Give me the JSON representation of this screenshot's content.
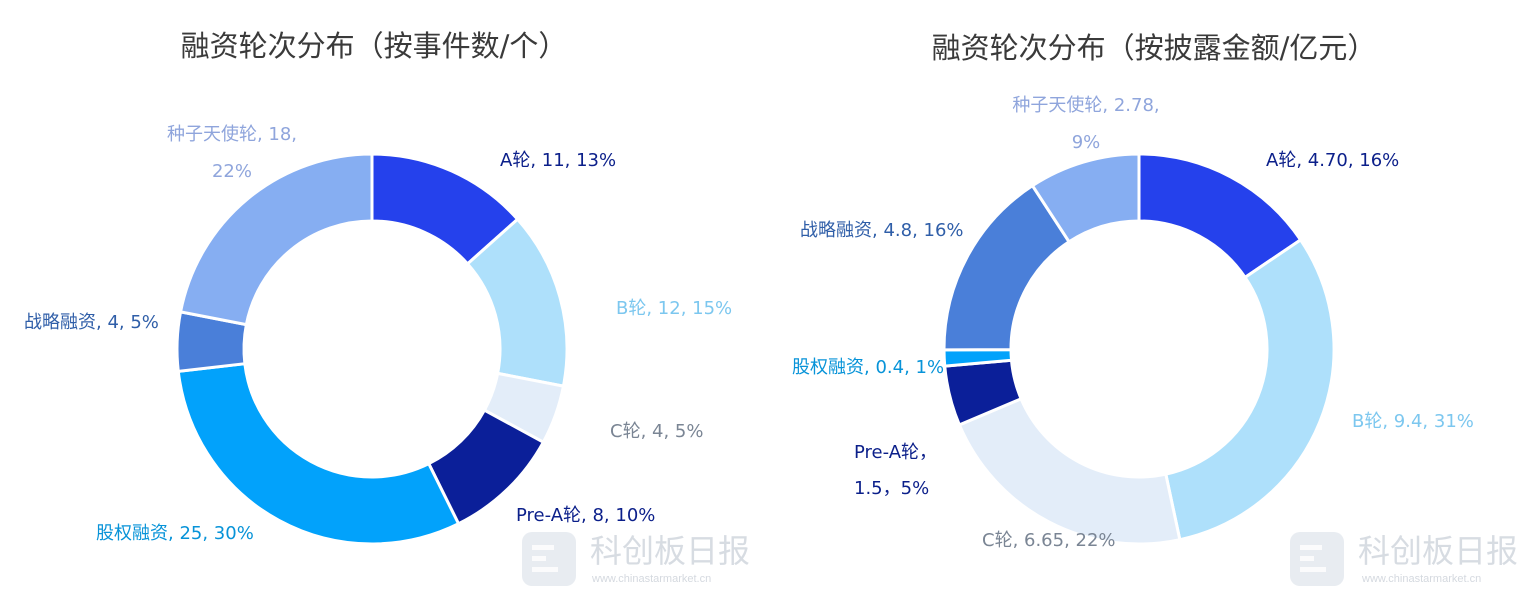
{
  "chart_data": [
    {
      "type": "pie",
      "title": "融资轮次分布（按事件数/个）",
      "slices": [
        {
          "name": "A轮",
          "value": 11,
          "label": "A轮, 11, 13%",
          "color": "#2541ec",
          "label_color": "#0b1f8a"
        },
        {
          "name": "B轮",
          "value": 12,
          "label": "B轮, 12, 15%",
          "color": "#aee0fb",
          "label_color": "#7cc7ef"
        },
        {
          "name": "C轮",
          "value": 4,
          "label": "C轮, 4, 5%",
          "color": "#e3edf9",
          "label_color": "#7a8594"
        },
        {
          "name": "Pre-A轮",
          "value": 8,
          "label": "Pre-A轮, 8, 10%",
          "color": "#0b1f99",
          "label_color": "#0b1f8a"
        },
        {
          "name": "股权融资",
          "value": 25,
          "label": "股权融资, 25, 30%",
          "color": "#02a2fb",
          "label_color": "#0793d8"
        },
        {
          "name": "战略融资",
          "value": 4,
          "label": "战略融资, 4, 5%",
          "color": "#4a7fd9",
          "label_color": "#2f5ea8"
        },
        {
          "name": "种子天使轮",
          "value": 18,
          "label_lines": [
            "种子天使轮, 18,",
            "22%"
          ],
          "color": "#86aef2",
          "label_color": "#8fa5dc"
        }
      ]
    },
    {
      "type": "pie",
      "title": "融资轮次分布（按披露金额/亿元）",
      "slices": [
        {
          "name": "A轮",
          "value": 4.7,
          "label": "A轮, 4.70, 16%",
          "color": "#2541ec",
          "label_color": "#0b1f8a"
        },
        {
          "name": "B轮",
          "value": 9.4,
          "label": "B轮, 9.4, 31%",
          "color": "#aee0fb",
          "label_color": "#7cc7ef"
        },
        {
          "name": "C轮",
          "value": 6.65,
          "label": "C轮, 6.65, 22%",
          "color": "#e3edf9",
          "label_color": "#7a8594"
        },
        {
          "name": "Pre-A轮",
          "value": 1.5,
          "label_lines": [
            "Pre-A轮，",
            "1.5，5%"
          ],
          "color": "#0b1f99",
          "label_color": "#0b1f8a"
        },
        {
          "name": "股权融资",
          "value": 0.4,
          "label": "股权融资, 0.4, 1%",
          "color": "#02a2fb",
          "label_color": "#0793d8"
        },
        {
          "name": "战略融资",
          "value": 4.8,
          "label": "战略融资, 4.8, 16%",
          "color": "#4a7fd9",
          "label_color": "#2f5ea8"
        },
        {
          "name": "种子天使轮",
          "value": 2.78,
          "label_lines": [
            "种子天使轮, 2.78,",
            "9%"
          ],
          "color": "#86aef2",
          "label_color": "#8fa5dc"
        }
      ]
    }
  ],
  "watermark": {
    "text": "科创板日报",
    "url": "www.chinastarmarket.cn"
  }
}
